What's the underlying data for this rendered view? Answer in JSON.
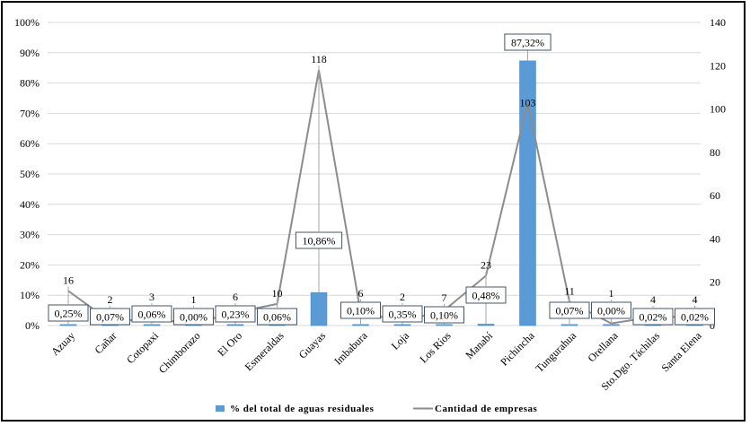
{
  "chart_data": {
    "type": "bar+line",
    "categories": [
      "Azuay",
      "Cañar",
      "Cotopaxi",
      "Chimborazo",
      "El Oro",
      "Esmeraldas",
      "Guayas",
      "Imbabura",
      "Loja",
      "Los Ríos",
      "Manabí",
      "Pichincha",
      "Tungurahua",
      "Orellana",
      "Sto.Dgo. Táchilas",
      "Santa Elena"
    ],
    "series": [
      {
        "name": "% del total de aguas residuales",
        "type": "bar",
        "axis": "left",
        "color": "#5b9bd5",
        "values": [
          0.25,
          0.07,
          0.06,
          0.0,
          0.23,
          0.06,
          10.86,
          0.1,
          0.35,
          0.1,
          0.48,
          87.32,
          0.07,
          0.0,
          0.02,
          0.02
        ],
        "labels": [
          "0,25%",
          "0,07%",
          "0,06%",
          "0,00%",
          "0,23%",
          "0,06%",
          "10,86%",
          "0,10%",
          "0,35%",
          "0,10%",
          "0,48%",
          "87,32%",
          "0,07%",
          "0,00%",
          "0,02%",
          "0,02%"
        ]
      },
      {
        "name": "Cantidad de empresas",
        "type": "line",
        "axis": "right",
        "color": "#8c8c8c",
        "values": [
          16,
          2,
          3,
          1,
          6,
          10,
          118,
          6,
          2,
          7,
          23,
          103,
          11,
          1,
          4,
          4
        ]
      }
    ],
    "left_axis": {
      "range": [
        0,
        100
      ],
      "ticks": [
        "0%",
        "10%",
        "20%",
        "30%",
        "40%",
        "50%",
        "60%",
        "70%",
        "80%",
        "90%",
        "100%"
      ]
    },
    "right_axis": {
      "range": [
        0,
        140
      ],
      "ticks": [
        "0",
        "20",
        "40",
        "60",
        "80",
        "100",
        "120",
        "140"
      ]
    },
    "grid": true,
    "legend": "bottom"
  }
}
